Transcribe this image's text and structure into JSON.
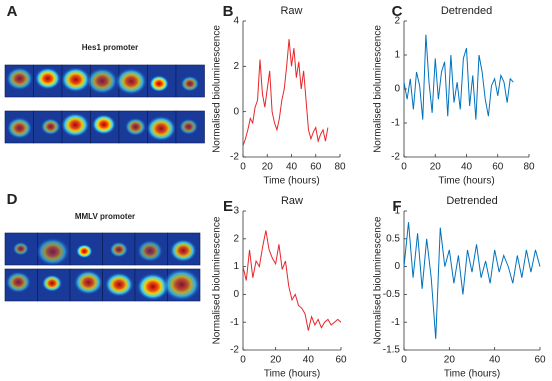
{
  "images": [
    {
      "panel": "A",
      "caption": "Hes1 promoter"
    },
    {
      "panel": "D",
      "caption": "MMLV promoter"
    }
  ],
  "chart_data": [
    {
      "type": "line",
      "panel": "B",
      "title": "Raw",
      "xlabel": "Time (hours)",
      "ylabel": "Normalised bioluminescence",
      "color": "#e8262a",
      "x": [
        0,
        2,
        4,
        6,
        8,
        10,
        12,
        14,
        16,
        18,
        20,
        22,
        24,
        26,
        28,
        30,
        32,
        34,
        36,
        38,
        40,
        42,
        44,
        46,
        48,
        50,
        52,
        54,
        56,
        58,
        60,
        62,
        64,
        66,
        68,
        70
      ],
      "values": [
        -1.5,
        -1.2,
        -0.8,
        -0.3,
        -0.5,
        0.2,
        0.5,
        2.3,
        0.8,
        0.2,
        1.0,
        1.8,
        0.0,
        -0.5,
        -0.8,
        -0.3,
        0.5,
        1.0,
        2.0,
        3.2,
        2.0,
        2.8,
        1.5,
        2.2,
        1.0,
        1.8,
        0.5,
        -0.8,
        -1.2,
        -0.9,
        -0.7,
        -1.3,
        -1.0,
        -0.8,
        -1.3,
        -0.7
      ],
      "xlim": [
        0,
        80
      ],
      "xticks": [
        0,
        20,
        40,
        60,
        80
      ],
      "ylim": [
        -2,
        4
      ],
      "yticks": [
        -2,
        0,
        2,
        4
      ]
    },
    {
      "type": "line",
      "panel": "C",
      "title": "Detrended",
      "xlabel": "Time (hours)",
      "ylabel": "Normalised bioluminescence",
      "color": "#0072bd",
      "x": [
        0,
        2,
        4,
        6,
        8,
        10,
        12,
        14,
        16,
        18,
        20,
        22,
        24,
        26,
        28,
        30,
        32,
        34,
        36,
        38,
        40,
        42,
        44,
        46,
        48,
        50,
        52,
        54,
        56,
        58,
        60,
        62,
        64,
        66,
        68,
        70
      ],
      "values": [
        0.2,
        -0.3,
        0.3,
        -0.6,
        0.5,
        0.1,
        -0.9,
        1.6,
        0.2,
        -0.7,
        0.9,
        -0.3,
        0.5,
        0.8,
        -0.8,
        1.0,
        -0.4,
        0.2,
        -0.6,
        0.9,
        1.2,
        -0.5,
        0.4,
        -0.9,
        1.0,
        0.5,
        -0.3,
        -0.8,
        0.1,
        0.3,
        -0.2,
        0.4,
        0.2,
        -0.4,
        0.3,
        0.2
      ],
      "xlim": [
        0,
        80
      ],
      "xticks": [
        0,
        20,
        40,
        60,
        80
      ],
      "ylim": [
        -2,
        2
      ],
      "yticks": [
        -2,
        -1,
        0,
        1,
        2
      ]
    },
    {
      "type": "line",
      "panel": "E",
      "title": "Raw",
      "xlabel": "Time (hours)",
      "ylabel": "Normalised bioluminescence",
      "color": "#e8262a",
      "x": [
        0,
        2,
        4,
        6,
        8,
        10,
        12,
        14,
        16,
        18,
        20,
        22,
        24,
        26,
        28,
        30,
        32,
        34,
        36,
        38,
        40,
        42,
        44,
        46,
        48,
        50,
        52,
        54,
        56,
        58,
        60
      ],
      "values": [
        1.0,
        0.5,
        1.6,
        0.6,
        1.2,
        1.0,
        1.7,
        2.3,
        1.6,
        1.3,
        1.1,
        1.8,
        0.9,
        1.2,
        0.3,
        -0.2,
        0.0,
        -0.4,
        -0.5,
        -0.7,
        -1.3,
        -0.8,
        -1.1,
        -0.9,
        -1.2,
        -1.0,
        -0.9,
        -1.1,
        -1.0,
        -0.9,
        -1.0
      ],
      "xlim": [
        0,
        60
      ],
      "xticks": [
        0,
        20,
        40,
        60
      ],
      "ylim": [
        -2,
        3
      ],
      "yticks": [
        -2,
        -1,
        0,
        1,
        2,
        3
      ]
    },
    {
      "type": "line",
      "panel": "F",
      "title": "Detrended",
      "xlabel": "Time (hours)",
      "ylabel": "Normalised bioluminescence",
      "color": "#0072bd",
      "x": [
        0,
        2,
        4,
        6,
        8,
        10,
        12,
        14,
        16,
        18,
        20,
        22,
        24,
        26,
        28,
        30,
        32,
        34,
        36,
        38,
        40,
        42,
        44,
        46,
        48,
        50,
        52,
        54,
        56,
        58,
        60
      ],
      "values": [
        0.0,
        0.8,
        -0.2,
        0.6,
        -0.4,
        0.5,
        -0.2,
        -1.3,
        0.7,
        0.0,
        0.3,
        -0.3,
        0.2,
        -0.5,
        0.3,
        -0.1,
        0.4,
        -0.2,
        0.1,
        -0.3,
        0.3,
        -0.1,
        0.2,
        0.0,
        -0.3,
        0.2,
        -0.2,
        0.3,
        -0.1,
        0.3,
        0.0
      ],
      "xlim": [
        0,
        60
      ],
      "xticks": [
        0,
        20,
        40,
        60
      ],
      "ylim": [
        -1.5,
        1
      ],
      "yticks": [
        -1.5,
        -1,
        -0.5,
        0,
        0.5,
        1
      ]
    }
  ]
}
